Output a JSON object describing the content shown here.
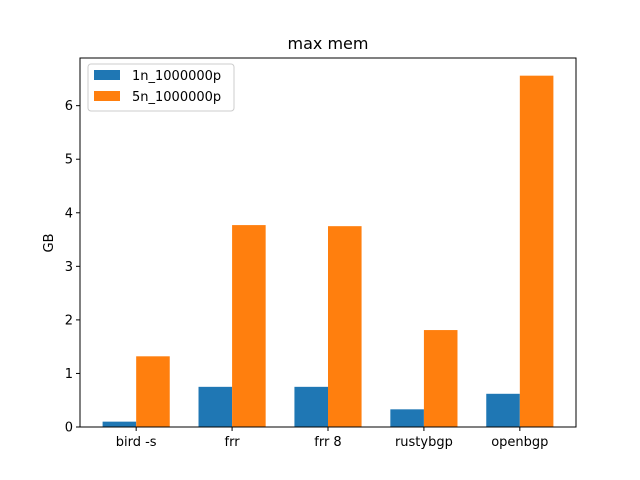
{
  "chart_data": {
    "type": "bar",
    "title": "max mem",
    "xlabel": "",
    "ylabel": "GB",
    "categories": [
      "bird -s",
      "frr",
      "frr 8",
      "rustybgp",
      "openbgp"
    ],
    "series": [
      {
        "name": "1n_1000000p",
        "color": "#1f77b4",
        "values": [
          0.1,
          0.75,
          0.75,
          0.33,
          0.62
        ]
      },
      {
        "name": "5n_1000000p",
        "color": "#ff7f0e",
        "values": [
          1.32,
          3.77,
          3.75,
          1.81,
          6.56
        ]
      }
    ],
    "ylim": [
      0,
      6.89
    ],
    "yticks": [
      0,
      1,
      2,
      3,
      4,
      5,
      6
    ],
    "grid": false,
    "legend_position": "top-left"
  }
}
